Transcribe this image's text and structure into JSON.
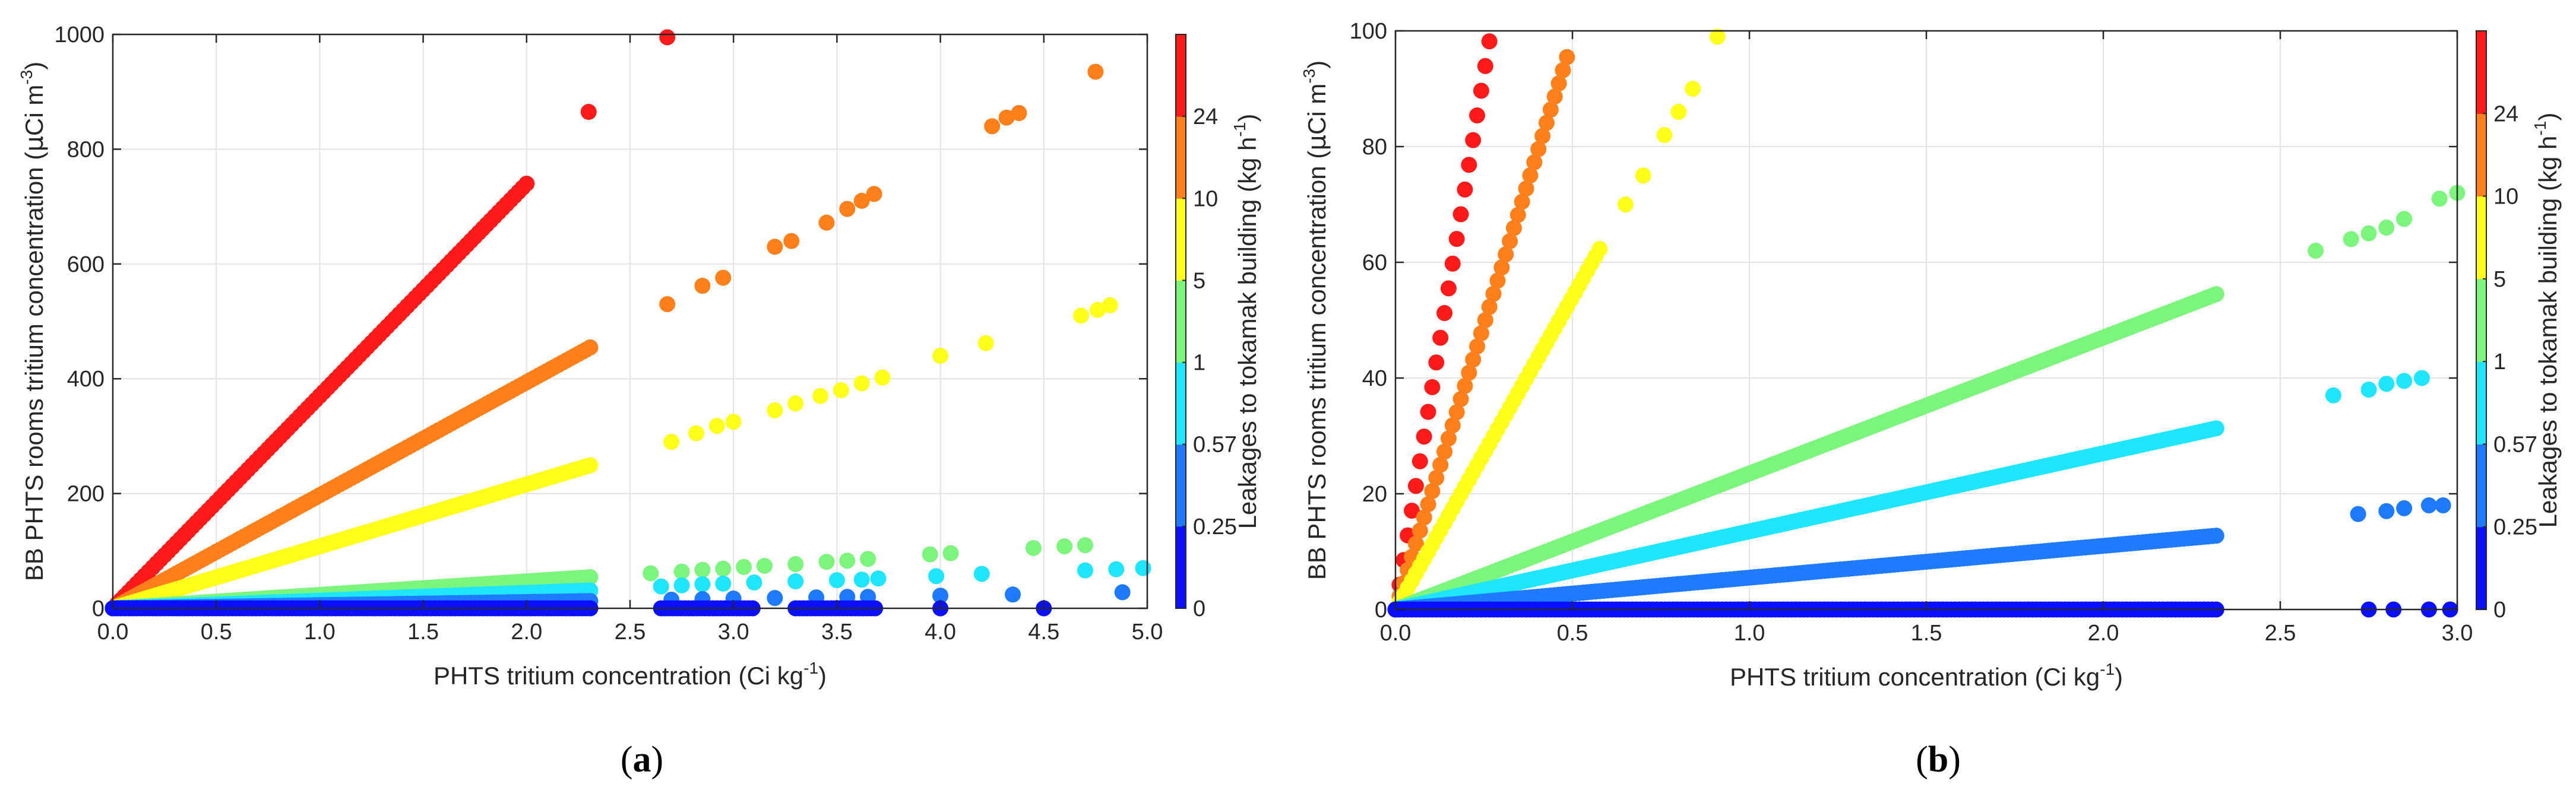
{
  "chart_data": [
    {
      "type": "scatter",
      "panel_label": "a",
      "panel_caption_open": "(",
      "panel_caption_close": ")",
      "xlabel": "PHTS tritium concentration (Ci kg",
      "xlabel_sup": "-1",
      "xlabel_end": ")",
      "ylabel": "BB PHTS rooms tritium concentration (",
      "ylabel_mu": "μ",
      "ylabel_unit": "Ci m",
      "ylabel_sup": "-3",
      "ylabel_end": ")",
      "xlim": [
        0,
        5
      ],
      "ylim": [
        0,
        1000
      ],
      "xticks": [
        0,
        0.5,
        1,
        1.5,
        2,
        2.5,
        3,
        3.5,
        4,
        4.5,
        5
      ],
      "xtick_labels": [
        "0.0",
        "0.5",
        "1.0",
        "1.5",
        "2.0",
        "2.5",
        "3.0",
        "3.5",
        "4.0",
        "4.5",
        "5.0"
      ],
      "yticks": [
        0,
        200,
        400,
        600,
        800,
        1000
      ],
      "ytick_labels": [
        "0",
        "200",
        "400",
        "600",
        "800",
        "1000"
      ],
      "grid": true,
      "colorbar": {
        "label": "Leakages to tokamak building (kg h",
        "label_sup": "-1",
        "label_end": ")",
        "ticks": [
          "0",
          "0.25",
          "0.57",
          "1",
          "5",
          "10",
          "24"
        ],
        "colors": [
          "#0a10ff",
          "#1e7bff",
          "#1ee6ff",
          "#7cf57c",
          "#ffff1a",
          "#ff7f1a",
          "#ff1a1a"
        ]
      },
      "series": [
        {
          "name": "24",
          "color": "#ff1a1a",
          "slope": 370,
          "segments": [
            [
              0,
              2.0
            ]
          ],
          "extra_points": [
            [
              2.3,
              865
            ],
            [
              2.68,
              995
            ]
          ]
        },
        {
          "name": "10",
          "color": "#ff7f1a",
          "slope": 197,
          "segments": [
            [
              0,
              2.32
            ]
          ],
          "extra_points": [
            [
              2.68,
              530
            ],
            [
              2.85,
              562
            ],
            [
              2.95,
              576
            ],
            [
              3.2,
              630
            ],
            [
              3.28,
              640
            ],
            [
              3.45,
              672
            ],
            [
              3.55,
              696
            ],
            [
              3.62,
              710
            ],
            [
              3.68,
              722
            ],
            [
              4.25,
              840
            ],
            [
              4.32,
              855
            ],
            [
              4.38,
              863
            ],
            [
              4.75,
              935
            ]
          ]
        },
        {
          "name": "5",
          "color": "#ffff1a",
          "slope": 108,
          "segments": [
            [
              0,
              2.32
            ]
          ],
          "extra_points": [
            [
              2.7,
              290
            ],
            [
              2.82,
              305
            ],
            [
              2.92,
              318
            ],
            [
              3.0,
              325
            ],
            [
              3.2,
              345
            ],
            [
              3.3,
              357
            ],
            [
              3.42,
              370
            ],
            [
              3.52,
              380
            ],
            [
              3.62,
              392
            ],
            [
              3.72,
              402
            ],
            [
              4.0,
              440
            ],
            [
              4.22,
              462
            ],
            [
              4.68,
              510
            ],
            [
              4.76,
              520
            ],
            [
              4.82,
              528
            ]
          ]
        },
        {
          "name": "1",
          "color": "#7cf57c",
          "slope": 23.5,
          "segments": [
            [
              0,
              2.32
            ]
          ],
          "extra_points": [
            [
              2.6,
              61
            ],
            [
              2.75,
              64
            ],
            [
              2.85,
              67
            ],
            [
              2.95,
              69
            ],
            [
              3.05,
              72
            ],
            [
              3.15,
              74
            ],
            [
              3.3,
              77
            ],
            [
              3.45,
              81
            ],
            [
              3.55,
              83
            ],
            [
              3.65,
              86
            ],
            [
              3.95,
              94
            ],
            [
              4.05,
              96
            ],
            [
              4.45,
              105
            ],
            [
              4.6,
              108
            ],
            [
              4.7,
              110
            ]
          ]
        },
        {
          "name": "0.57",
          "color": "#1ee6ff",
          "slope": 13.5,
          "segments": [
            [
              0,
              2.32
            ]
          ],
          "extra_points": [
            [
              2.65,
              38
            ],
            [
              2.75,
              40
            ],
            [
              2.85,
              42
            ],
            [
              2.95,
              43
            ],
            [
              3.1,
              45
            ],
            [
              3.3,
              47
            ],
            [
              3.5,
              49
            ],
            [
              3.62,
              50
            ],
            [
              3.7,
              52
            ],
            [
              3.98,
              56
            ],
            [
              4.2,
              60
            ],
            [
              4.7,
              66
            ],
            [
              4.85,
              68
            ],
            [
              4.98,
              70
            ]
          ]
        },
        {
          "name": "0.25",
          "color": "#1e7bff",
          "slope": 5.5,
          "segments": [
            [
              0,
              2.32
            ]
          ],
          "extra_points": [
            [
              2.7,
              15
            ],
            [
              2.85,
              16
            ],
            [
              3.0,
              17
            ],
            [
              3.2,
              18
            ],
            [
              3.4,
              19
            ],
            [
              3.55,
              20
            ],
            [
              3.65,
              20
            ],
            [
              4.0,
              22
            ],
            [
              4.35,
              24
            ],
            [
              4.88,
              28
            ]
          ]
        },
        {
          "name": "0",
          "color": "#0a10ff",
          "slope": 0,
          "segments": [
            [
              0,
              2.32
            ],
            [
              2.65,
              3.1
            ],
            [
              3.3,
              3.7
            ]
          ],
          "extra_points": [
            [
              4.0,
              0
            ],
            [
              4.5,
              0
            ]
          ]
        }
      ]
    },
    {
      "type": "scatter",
      "panel_label": "b",
      "panel_caption_open": "(",
      "panel_caption_close": ")",
      "xlabel": "PHTS tritium concentration (Ci kg",
      "xlabel_sup": "-1",
      "xlabel_end": ")",
      "ylabel": "BB PHTS rooms tritium concentration (",
      "ylabel_mu": "μ",
      "ylabel_unit": "Ci m",
      "ylabel_sup": "-3",
      "ylabel_end": ")",
      "xlim": [
        0,
        3
      ],
      "ylim": [
        0,
        100
      ],
      "xticks": [
        0,
        0.5,
        1,
        1.5,
        2,
        2.5,
        3
      ],
      "xtick_labels": [
        "0.0",
        "0.5",
        "1.0",
        "1.5",
        "2.0",
        "2.5",
        "3.0"
      ],
      "yticks": [
        0,
        20,
        40,
        60,
        80,
        100
      ],
      "ytick_labels": [
        "0",
        "20",
        "40",
        "60",
        "80",
        "100"
      ],
      "grid": true,
      "colorbar": {
        "label": "Leakages to tokamak building (kg h",
        "label_sup": "-1",
        "label_end": ")",
        "ticks": [
          "0",
          "0.25",
          "0.57",
          "1",
          "5",
          "10",
          "24"
        ],
        "colors": [
          "#0a10ff",
          "#1e7bff",
          "#1ee6ff",
          "#7cf57c",
          "#ffff1a",
          "#ff7f1a",
          "#ff1a1a"
        ]
      },
      "series": [
        {
          "name": "24",
          "color": "#ff1a1a",
          "slope": 370,
          "segments": [
            [
              0,
              0.27
            ]
          ],
          "extra_points": []
        },
        {
          "name": "10",
          "color": "#ff7f1a",
          "slope": 197,
          "segments": [
            [
              0,
              0.485
            ]
          ],
          "extra_points": []
        },
        {
          "name": "5",
          "color": "#ffff1a",
          "slope": 108,
          "segments": [
            [
              0,
              0.58
            ]
          ],
          "extra_points": [
            [
              0.65,
              70
            ],
            [
              0.7,
              75
            ],
            [
              0.76,
              82
            ],
            [
              0.8,
              86
            ],
            [
              0.84,
              90
            ],
            [
              0.91,
              99
            ]
          ]
        },
        {
          "name": "1",
          "color": "#7cf57c",
          "slope": 23.5,
          "segments": [
            [
              0,
              2.32
            ]
          ],
          "extra_points": [
            [
              2.6,
              62
            ],
            [
              2.7,
              64
            ],
            [
              2.75,
              65
            ],
            [
              2.8,
              66
            ],
            [
              2.85,
              67.5
            ],
            [
              2.95,
              71
            ],
            [
              3.0,
              72
            ]
          ]
        },
        {
          "name": "0.57",
          "color": "#1ee6ff",
          "slope": 13.5,
          "segments": [
            [
              0,
              2.32
            ]
          ],
          "extra_points": [
            [
              2.65,
              37
            ],
            [
              2.75,
              38
            ],
            [
              2.8,
              39
            ],
            [
              2.85,
              39.5
            ],
            [
              2.9,
              40
            ]
          ]
        },
        {
          "name": "0.25",
          "color": "#1e7bff",
          "slope": 5.5,
          "segments": [
            [
              0,
              2.32
            ]
          ],
          "extra_points": [
            [
              2.72,
              16.5
            ],
            [
              2.8,
              17
            ],
            [
              2.85,
              17.5
            ],
            [
              2.92,
              18
            ],
            [
              2.96,
              18
            ]
          ]
        },
        {
          "name": "0",
          "color": "#0a10ff",
          "slope": 0,
          "segments": [
            [
              0,
              2.32
            ]
          ],
          "extra_points": [
            [
              2.75,
              0
            ],
            [
              2.82,
              0
            ],
            [
              2.92,
              0
            ],
            [
              2.98,
              0
            ]
          ]
        }
      ]
    }
  ]
}
